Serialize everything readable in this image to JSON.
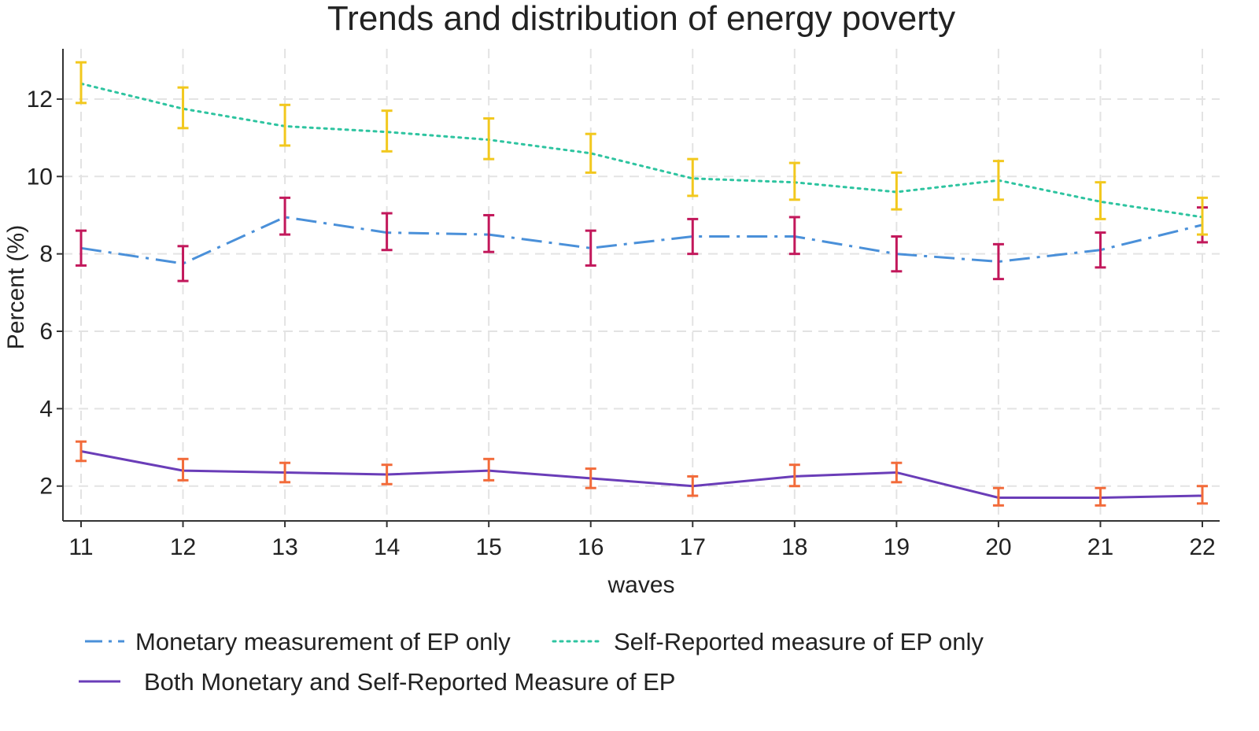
{
  "chart_data": {
    "type": "line",
    "title": "Trends and distribution of energy poverty",
    "xlabel": "waves",
    "ylabel": "Percent (%)",
    "x": [
      11,
      12,
      13,
      14,
      15,
      16,
      17,
      18,
      19,
      20,
      21,
      22
    ],
    "xlim": [
      11,
      22
    ],
    "ylim": [
      1.1,
      13.3
    ],
    "yticks": [
      2,
      4,
      6,
      8,
      10,
      12
    ],
    "grid": true,
    "legend_position": "bottom",
    "series": [
      {
        "name": "Monetary measurement of EP only",
        "line_style": "dash-dot",
        "color": "#4a90d9",
        "errorbar_color": "#c2185b",
        "values": [
          8.15,
          7.75,
          8.95,
          8.55,
          8.5,
          8.15,
          8.45,
          8.45,
          8.0,
          7.8,
          8.1,
          8.75
        ],
        "ci_lower": [
          7.7,
          7.3,
          8.5,
          8.1,
          8.05,
          7.7,
          8.0,
          8.0,
          7.55,
          7.35,
          7.65,
          8.3
        ],
        "ci_upper": [
          8.6,
          8.2,
          9.45,
          9.05,
          9.0,
          8.6,
          8.9,
          8.95,
          8.45,
          8.25,
          8.55,
          9.2
        ]
      },
      {
        "name": "Self-Reported measure of EP only",
        "line_style": "dotted",
        "color": "#2ec4a0",
        "errorbar_color": "#f2c81e",
        "values": [
          12.4,
          11.75,
          11.3,
          11.15,
          10.95,
          10.6,
          9.95,
          9.85,
          9.6,
          9.9,
          9.35,
          8.95
        ],
        "ci_lower": [
          11.9,
          11.25,
          10.8,
          10.65,
          10.45,
          10.1,
          9.5,
          9.4,
          9.15,
          9.4,
          8.9,
          8.5
        ],
        "ci_upper": [
          12.95,
          12.3,
          11.85,
          11.7,
          11.5,
          11.1,
          10.45,
          10.35,
          10.1,
          10.4,
          9.85,
          9.45
        ]
      },
      {
        "name": "Both Monetary and Self-Reported Measure of EP",
        "line_style": "solid",
        "color": "#6a3db8",
        "errorbar_color": "#f26b3a",
        "values": [
          2.9,
          2.4,
          2.35,
          2.3,
          2.4,
          2.2,
          2.0,
          2.25,
          2.35,
          1.7,
          1.7,
          1.75
        ],
        "ci_lower": [
          2.65,
          2.15,
          2.1,
          2.05,
          2.15,
          1.95,
          1.75,
          2.0,
          2.1,
          1.5,
          1.5,
          1.55
        ],
        "ci_upper": [
          3.15,
          2.7,
          2.6,
          2.55,
          2.7,
          2.45,
          2.25,
          2.55,
          2.6,
          1.95,
          1.95,
          2.0
        ]
      }
    ]
  }
}
